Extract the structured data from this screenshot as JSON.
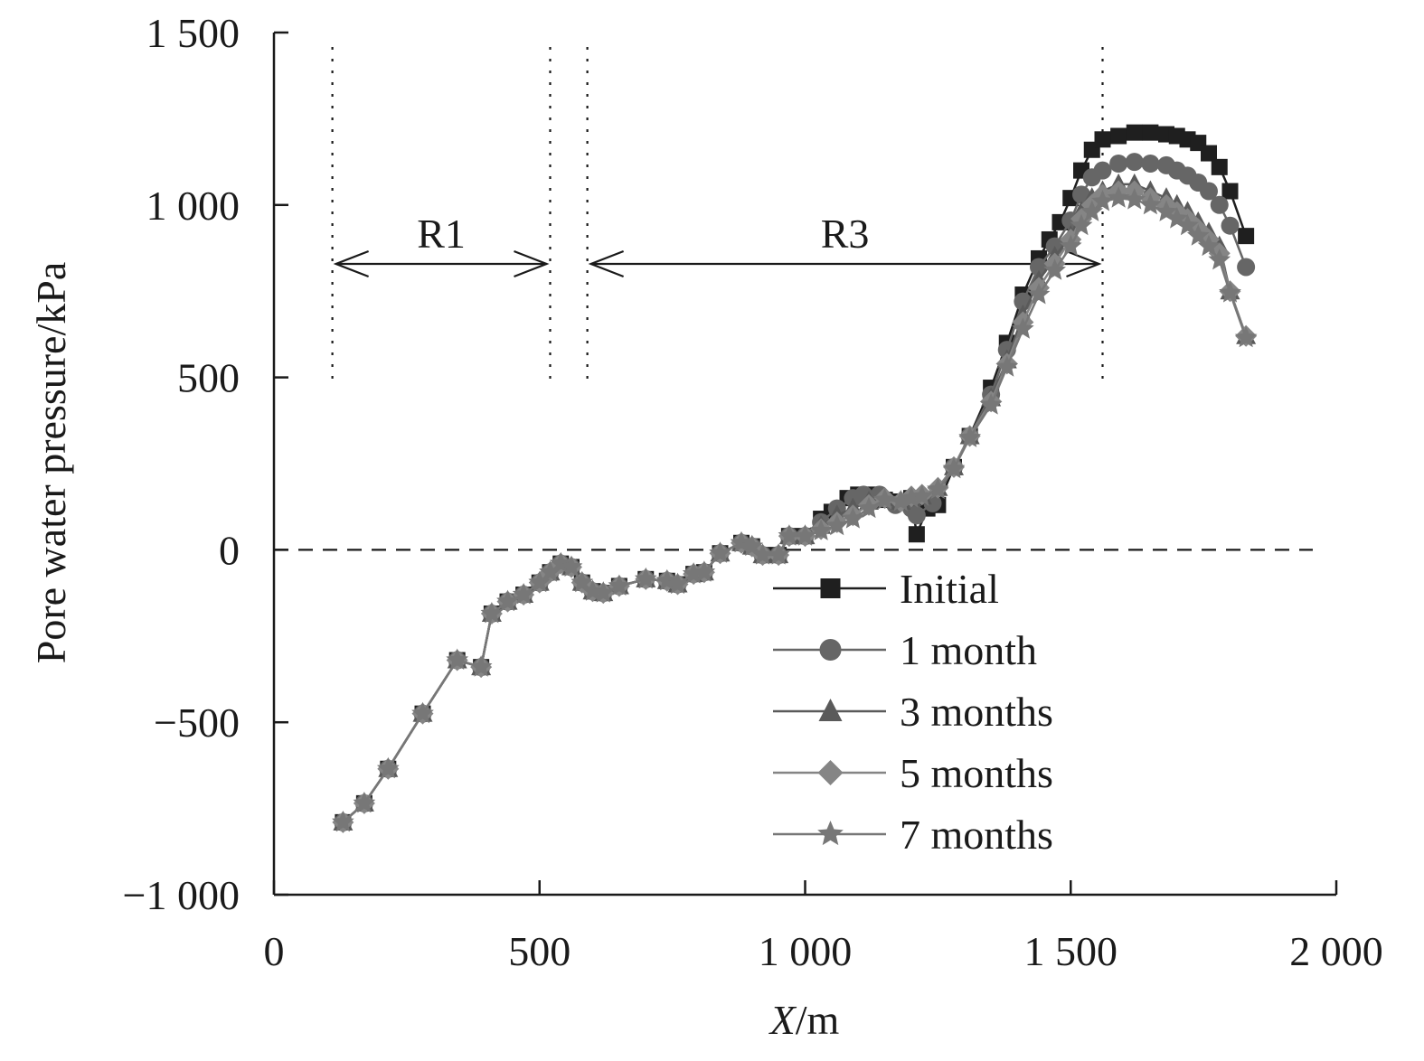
{
  "chart_data": {
    "type": "line",
    "xlabel_italic": "X",
    "xlabel_unit": "/m",
    "ylabel": "Pore water pressure/kPa",
    "xlim": [
      0,
      2000
    ],
    "ylim": [
      -1000,
      1500
    ],
    "xticks": [
      0,
      500,
      1000,
      1500,
      2000
    ],
    "yticks": [
      -1000,
      -500,
      0,
      500,
      1000,
      1500
    ],
    "xtick_labels": [
      "0",
      "500",
      "1 000",
      "1 500",
      "2 000"
    ],
    "ytick_labels": [
      "−1 000",
      "−500",
      "0",
      "500",
      "1 000",
      "1 500"
    ],
    "grid": false,
    "legend_position": "lower-right",
    "zero_line": {
      "y": 0,
      "style": "dashed"
    },
    "regions": [
      {
        "label": "R1",
        "x_start": 110,
        "x_end": 520
      },
      {
        "label": "R3",
        "x_start": 590,
        "x_end": 1560
      }
    ],
    "colors": {
      "Initial": "#1f1f1f",
      "1 month": "#666666",
      "3 months": "#5a5a5a",
      "5 months": "#858585",
      "7 months": "#777777"
    },
    "series": [
      {
        "name": "Initial",
        "marker": "square",
        "points": [
          [
            130,
            -790
          ],
          [
            170,
            -735
          ],
          [
            215,
            -635
          ],
          [
            280,
            -475
          ],
          [
            345,
            -320
          ],
          [
            390,
            -340
          ],
          [
            410,
            -185
          ],
          [
            440,
            -150
          ],
          [
            470,
            -130
          ],
          [
            500,
            -95
          ],
          [
            520,
            -65
          ],
          [
            540,
            -40
          ],
          [
            560,
            -50
          ],
          [
            580,
            -95
          ],
          [
            600,
            -120
          ],
          [
            620,
            -125
          ],
          [
            650,
            -105
          ],
          [
            700,
            -85
          ],
          [
            740,
            -90
          ],
          [
            760,
            -100
          ],
          [
            790,
            -70
          ],
          [
            810,
            -65
          ],
          [
            840,
            -10
          ],
          [
            880,
            20
          ],
          [
            900,
            10
          ],
          [
            920,
            -15
          ],
          [
            950,
            -15
          ],
          [
            970,
            40
          ],
          [
            1000,
            40
          ],
          [
            1030,
            90
          ],
          [
            1050,
            110
          ],
          [
            1080,
            150
          ],
          [
            1100,
            160
          ],
          [
            1120,
            160
          ],
          [
            1150,
            145
          ],
          [
            1180,
            140
          ],
          [
            1200,
            150
          ],
          [
            1210,
            45
          ],
          [
            1230,
            120
          ],
          [
            1250,
            130
          ],
          [
            1280,
            240
          ],
          [
            1310,
            330
          ],
          [
            1350,
            470
          ],
          [
            1380,
            600
          ],
          [
            1410,
            740
          ],
          [
            1440,
            845
          ],
          [
            1460,
            900
          ],
          [
            1480,
            950
          ],
          [
            1500,
            1020
          ],
          [
            1520,
            1100
          ],
          [
            1540,
            1160
          ],
          [
            1560,
            1190
          ],
          [
            1590,
            1200
          ],
          [
            1620,
            1210
          ],
          [
            1650,
            1210
          ],
          [
            1680,
            1205
          ],
          [
            1700,
            1200
          ],
          [
            1720,
            1190
          ],
          [
            1740,
            1180
          ],
          [
            1760,
            1150
          ],
          [
            1780,
            1110
          ],
          [
            1800,
            1040
          ],
          [
            1830,
            910
          ]
        ]
      },
      {
        "name": "1 month",
        "marker": "circle",
        "points": [
          [
            130,
            -790
          ],
          [
            170,
            -735
          ],
          [
            215,
            -635
          ],
          [
            280,
            -475
          ],
          [
            345,
            -320
          ],
          [
            390,
            -340
          ],
          [
            410,
            -185
          ],
          [
            440,
            -150
          ],
          [
            470,
            -130
          ],
          [
            500,
            -95
          ],
          [
            520,
            -65
          ],
          [
            540,
            -40
          ],
          [
            560,
            -50
          ],
          [
            580,
            -95
          ],
          [
            600,
            -120
          ],
          [
            620,
            -125
          ],
          [
            650,
            -105
          ],
          [
            700,
            -85
          ],
          [
            740,
            -90
          ],
          [
            760,
            -100
          ],
          [
            790,
            -70
          ],
          [
            810,
            -65
          ],
          [
            840,
            -10
          ],
          [
            880,
            20
          ],
          [
            900,
            10
          ],
          [
            920,
            -15
          ],
          [
            950,
            -15
          ],
          [
            970,
            40
          ],
          [
            1000,
            40
          ],
          [
            1030,
            80
          ],
          [
            1060,
            120
          ],
          [
            1090,
            150
          ],
          [
            1110,
            160
          ],
          [
            1140,
            160
          ],
          [
            1170,
            130
          ],
          [
            1200,
            120
          ],
          [
            1210,
            100
          ],
          [
            1240,
            135
          ],
          [
            1280,
            240
          ],
          [
            1310,
            330
          ],
          [
            1350,
            450
          ],
          [
            1380,
            580
          ],
          [
            1410,
            720
          ],
          [
            1440,
            820
          ],
          [
            1470,
            880
          ],
          [
            1500,
            955
          ],
          [
            1520,
            1030
          ],
          [
            1540,
            1080
          ],
          [
            1560,
            1100
          ],
          [
            1590,
            1120
          ],
          [
            1620,
            1125
          ],
          [
            1650,
            1120
          ],
          [
            1680,
            1115
          ],
          [
            1700,
            1100
          ],
          [
            1720,
            1085
          ],
          [
            1740,
            1065
          ],
          [
            1760,
            1040
          ],
          [
            1780,
            1000
          ],
          [
            1800,
            940
          ],
          [
            1830,
            820
          ]
        ]
      },
      {
        "name": "3 months",
        "marker": "triangle",
        "points": [
          [
            130,
            -790
          ],
          [
            170,
            -735
          ],
          [
            215,
            -635
          ],
          [
            280,
            -475
          ],
          [
            345,
            -320
          ],
          [
            390,
            -340
          ],
          [
            410,
            -185
          ],
          [
            440,
            -150
          ],
          [
            470,
            -130
          ],
          [
            500,
            -95
          ],
          [
            520,
            -65
          ],
          [
            540,
            -40
          ],
          [
            560,
            -50
          ],
          [
            580,
            -95
          ],
          [
            600,
            -120
          ],
          [
            620,
            -125
          ],
          [
            650,
            -105
          ],
          [
            700,
            -85
          ],
          [
            740,
            -90
          ],
          [
            760,
            -100
          ],
          [
            790,
            -70
          ],
          [
            810,
            -65
          ],
          [
            840,
            -10
          ],
          [
            880,
            20
          ],
          [
            900,
            10
          ],
          [
            920,
            -15
          ],
          [
            950,
            -15
          ],
          [
            970,
            40
          ],
          [
            1000,
            40
          ],
          [
            1030,
            70
          ],
          [
            1060,
            100
          ],
          [
            1090,
            120
          ],
          [
            1120,
            140
          ],
          [
            1150,
            150
          ],
          [
            1180,
            140
          ],
          [
            1200,
            150
          ],
          [
            1220,
            155
          ],
          [
            1250,
            180
          ],
          [
            1280,
            240
          ],
          [
            1310,
            330
          ],
          [
            1350,
            440
          ],
          [
            1380,
            550
          ],
          [
            1410,
            680
          ],
          [
            1440,
            780
          ],
          [
            1470,
            850
          ],
          [
            1500,
            910
          ],
          [
            1520,
            980
          ],
          [
            1540,
            1020
          ],
          [
            1560,
            1040
          ],
          [
            1590,
            1060
          ],
          [
            1620,
            1060
          ],
          [
            1650,
            1040
          ],
          [
            1680,
            1020
          ],
          [
            1700,
            1000
          ],
          [
            1720,
            980
          ],
          [
            1740,
            950
          ],
          [
            1760,
            920
          ],
          [
            1780,
            880
          ],
          [
            1800,
            750
          ],
          [
            1830,
            620
          ]
        ]
      },
      {
        "name": "5 months",
        "marker": "diamond",
        "points": [
          [
            130,
            -790
          ],
          [
            170,
            -735
          ],
          [
            215,
            -635
          ],
          [
            280,
            -475
          ],
          [
            345,
            -320
          ],
          [
            390,
            -340
          ],
          [
            410,
            -185
          ],
          [
            440,
            -150
          ],
          [
            470,
            -130
          ],
          [
            500,
            -95
          ],
          [
            520,
            -65
          ],
          [
            540,
            -40
          ],
          [
            560,
            -50
          ],
          [
            580,
            -95
          ],
          [
            600,
            -120
          ],
          [
            620,
            -125
          ],
          [
            650,
            -105
          ],
          [
            700,
            -85
          ],
          [
            740,
            -90
          ],
          [
            760,
            -100
          ],
          [
            790,
            -70
          ],
          [
            810,
            -65
          ],
          [
            840,
            -10
          ],
          [
            880,
            20
          ],
          [
            900,
            10
          ],
          [
            920,
            -15
          ],
          [
            950,
            -15
          ],
          [
            970,
            40
          ],
          [
            1000,
            40
          ],
          [
            1030,
            60
          ],
          [
            1060,
            80
          ],
          [
            1090,
            100
          ],
          [
            1120,
            130
          ],
          [
            1150,
            150
          ],
          [
            1180,
            140
          ],
          [
            1200,
            155
          ],
          [
            1220,
            160
          ],
          [
            1250,
            180
          ],
          [
            1280,
            240
          ],
          [
            1310,
            330
          ],
          [
            1350,
            430
          ],
          [
            1380,
            540
          ],
          [
            1410,
            660
          ],
          [
            1440,
            760
          ],
          [
            1470,
            830
          ],
          [
            1500,
            900
          ],
          [
            1520,
            960
          ],
          [
            1540,
            1000
          ],
          [
            1560,
            1030
          ],
          [
            1590,
            1040
          ],
          [
            1620,
            1040
          ],
          [
            1650,
            1020
          ],
          [
            1680,
            1000
          ],
          [
            1700,
            980
          ],
          [
            1720,
            960
          ],
          [
            1740,
            930
          ],
          [
            1760,
            900
          ],
          [
            1780,
            860
          ],
          [
            1800,
            750
          ],
          [
            1830,
            620
          ]
        ]
      },
      {
        "name": "7 months",
        "marker": "star",
        "points": [
          [
            130,
            -790
          ],
          [
            170,
            -735
          ],
          [
            215,
            -635
          ],
          [
            280,
            -475
          ],
          [
            345,
            -320
          ],
          [
            390,
            -340
          ],
          [
            410,
            -185
          ],
          [
            440,
            -150
          ],
          [
            470,
            -130
          ],
          [
            500,
            -95
          ],
          [
            520,
            -65
          ],
          [
            540,
            -40
          ],
          [
            560,
            -50
          ],
          [
            580,
            -95
          ],
          [
            600,
            -120
          ],
          [
            620,
            -125
          ],
          [
            650,
            -105
          ],
          [
            700,
            -85
          ],
          [
            740,
            -90
          ],
          [
            760,
            -100
          ],
          [
            790,
            -70
          ],
          [
            810,
            -65
          ],
          [
            840,
            -10
          ],
          [
            880,
            20
          ],
          [
            900,
            10
          ],
          [
            920,
            -15
          ],
          [
            950,
            -15
          ],
          [
            970,
            40
          ],
          [
            1000,
            40
          ],
          [
            1030,
            55
          ],
          [
            1060,
            70
          ],
          [
            1090,
            90
          ],
          [
            1120,
            120
          ],
          [
            1150,
            145
          ],
          [
            1180,
            140
          ],
          [
            1200,
            150
          ],
          [
            1220,
            155
          ],
          [
            1250,
            175
          ],
          [
            1280,
            235
          ],
          [
            1310,
            325
          ],
          [
            1350,
            420
          ],
          [
            1380,
            530
          ],
          [
            1410,
            640
          ],
          [
            1440,
            740
          ],
          [
            1470,
            810
          ],
          [
            1500,
            880
          ],
          [
            1520,
            940
          ],
          [
            1540,
            980
          ],
          [
            1560,
            1010
          ],
          [
            1590,
            1020
          ],
          [
            1620,
            1015
          ],
          [
            1650,
            1000
          ],
          [
            1680,
            980
          ],
          [
            1700,
            960
          ],
          [
            1720,
            940
          ],
          [
            1740,
            910
          ],
          [
            1760,
            880
          ],
          [
            1780,
            840
          ],
          [
            1800,
            745
          ],
          [
            1830,
            615
          ]
        ]
      }
    ]
  }
}
